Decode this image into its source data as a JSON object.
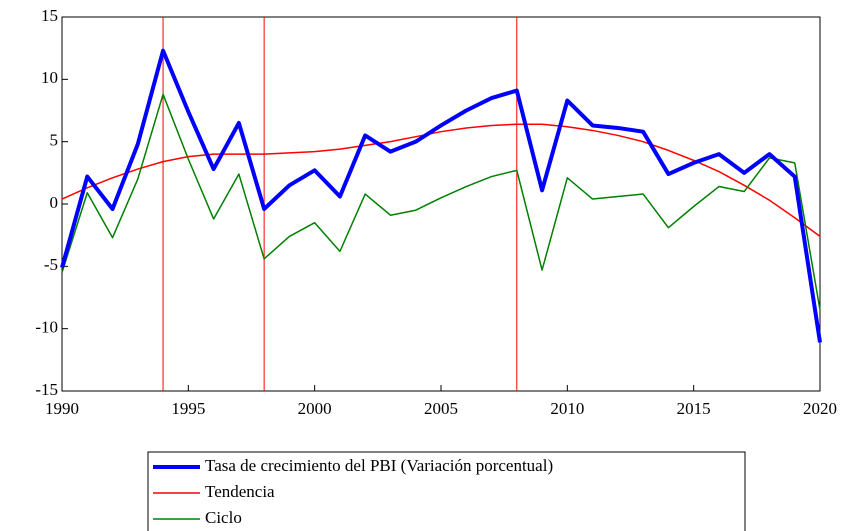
{
  "chart_data": {
    "type": "line",
    "x": [
      1990,
      1991,
      1992,
      1993,
      1994,
      1995,
      1996,
      1997,
      1998,
      1999,
      2000,
      2001,
      2002,
      2003,
      2004,
      2005,
      2006,
      2007,
      2008,
      2009,
      2010,
      2011,
      2012,
      2013,
      2014,
      2015,
      2016,
      2017,
      2018,
      2019,
      2020
    ],
    "series": [
      {
        "name": "Tasa de crecimiento del PBI (Variación porcentual)",
        "color": "#0000ff",
        "width": 4,
        "values": [
          -5.1,
          2.2,
          -0.4,
          4.8,
          12.3,
          7.4,
          2.8,
          6.5,
          -0.4,
          1.5,
          2.7,
          0.6,
          5.5,
          4.2,
          5.0,
          6.3,
          7.5,
          8.5,
          9.1,
          1.1,
          8.3,
          6.3,
          6.1,
          5.8,
          2.4,
          3.3,
          4.0,
          2.5,
          4.0,
          2.2,
          -11.1
        ]
      },
      {
        "name": "Tendencia",
        "color": "#ff0000",
        "width": 1.5,
        "values": [
          0.4,
          1.3,
          2.1,
          2.8,
          3.4,
          3.8,
          4.0,
          4.0,
          4.0,
          4.1,
          4.2,
          4.4,
          4.7,
          5.0,
          5.4,
          5.8,
          6.1,
          6.3,
          6.4,
          6.4,
          6.2,
          5.9,
          5.5,
          5.0,
          4.3,
          3.5,
          2.6,
          1.5,
          0.3,
          -1.1,
          -2.6
        ]
      },
      {
        "name": "Ciclo",
        "color": "#008000",
        "width": 1.5,
        "values": [
          -5.5,
          0.9,
          -2.7,
          2.0,
          8.8,
          3.6,
          -1.2,
          2.4,
          -4.4,
          -2.6,
          -1.5,
          -3.8,
          0.8,
          -0.9,
          -0.5,
          0.5,
          1.4,
          2.2,
          2.7,
          -5.3,
          2.1,
          0.4,
          0.6,
          0.8,
          -1.9,
          -0.2,
          1.4,
          1.0,
          3.7,
          3.3,
          -8.5
        ]
      }
    ],
    "vlines": [
      1994,
      1998,
      2008
    ],
    "vline_color": "#ff0000",
    "xlim": [
      1990,
      2020
    ],
    "xticks": [
      1990,
      1995,
      2000,
      2005,
      2010,
      2015,
      2020
    ],
    "ylim": [
      -15,
      15
    ],
    "yticks": [
      -15,
      -10,
      -5,
      0,
      5,
      10,
      15
    ]
  }
}
